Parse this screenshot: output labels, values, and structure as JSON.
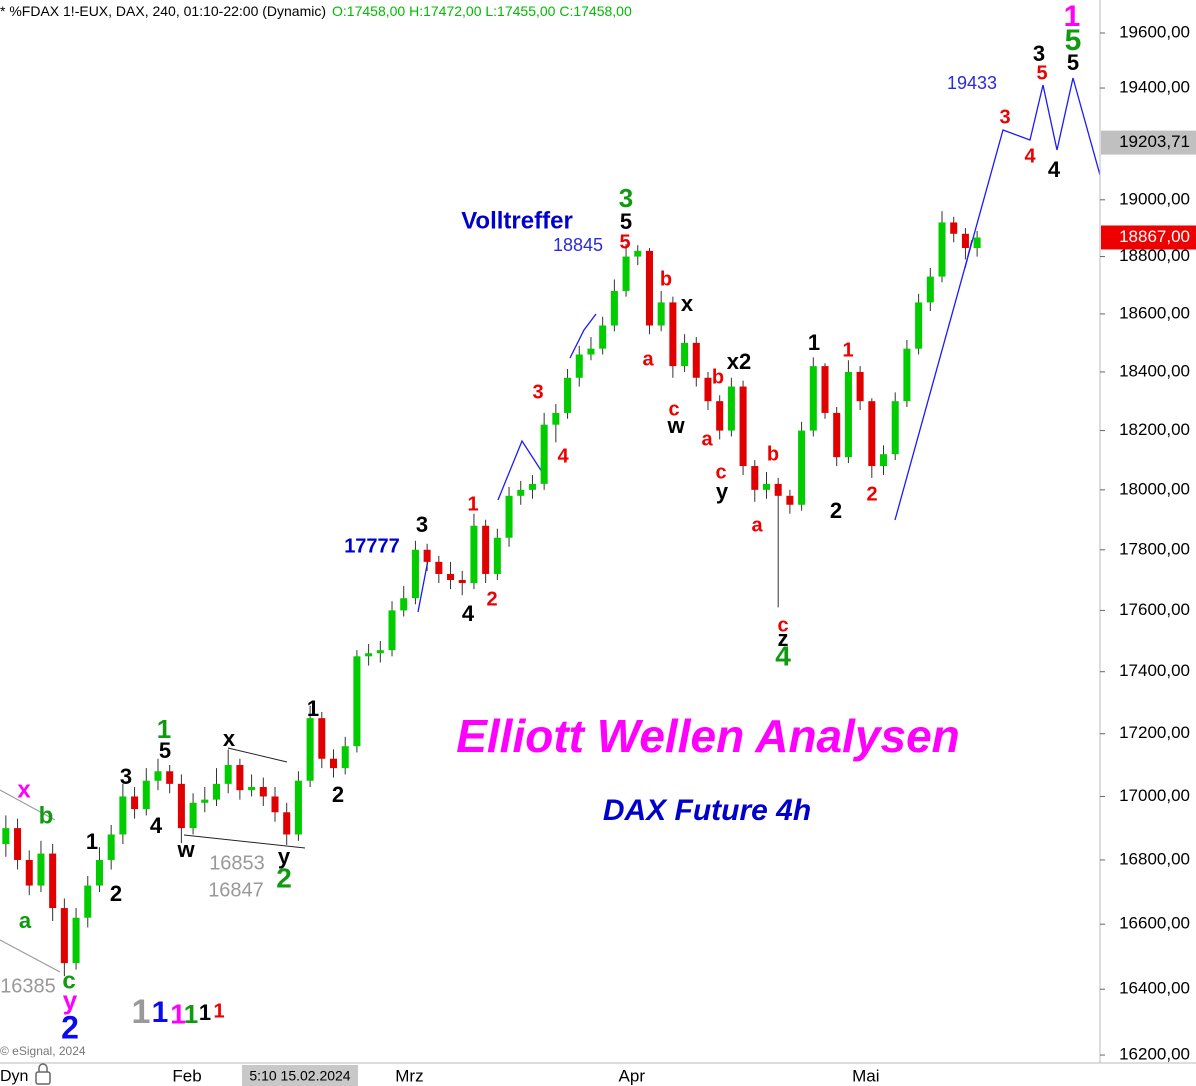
{
  "chart_data": {
    "type": "candlestick",
    "title": "* %FDAX 1!-EUX, DAX, 240, 01:10-22:00 (Dynamic)",
    "ohlc_readout": "O:17458,00 H:17472,00 L:17455,00 C:17458,00",
    "log_scale": true,
    "grid": false,
    "color_up": "#00cc00",
    "color_down": "#e00000",
    "categories": [
      null,
      null,
      null,
      null,
      null,
      null,
      null,
      null,
      null,
      null,
      null,
      null,
      null,
      null,
      null,
      null,
      "Feb",
      null,
      null,
      null,
      null,
      null,
      null,
      null,
      null,
      null,
      null,
      null,
      null,
      null,
      null,
      null,
      null,
      null,
      null,
      "Mrz",
      null,
      null,
      null,
      null,
      null,
      null,
      null,
      null,
      null,
      null,
      null,
      null,
      null,
      null,
      null,
      null,
      null,
      null,
      "Apr",
      null,
      null,
      null,
      null,
      null,
      null,
      null,
      null,
      null,
      null,
      null,
      null,
      null,
      null,
      null,
      null,
      null,
      null,
      null,
      "Mai",
      null,
      null,
      null,
      null,
      null,
      null,
      null,
      null,
      null,
      null,
      null,
      null,
      null,
      null,
      null,
      null,
      null,
      null,
      null
    ],
    "open": [
      16850,
      16900,
      16800,
      16720,
      16820,
      16650,
      16480,
      16620,
      16720,
      16800,
      16880,
      17000,
      16960,
      17050,
      17080,
      17040,
      16900,
      16980,
      16990,
      17040,
      17100,
      17020,
      17030,
      17000,
      16950,
      16880,
      17050,
      17250,
      17120,
      17090,
      17160,
      17450,
      17460,
      17470,
      17600,
      17640,
      17800,
      17760,
      17720,
      17700,
      17690,
      17880,
      17720,
      17840,
      17980,
      18000,
      18020,
      18220,
      18260,
      18380,
      18460,
      18480,
      18560,
      18680,
      18800,
      18820,
      18560,
      18640,
      18420,
      18500,
      18380,
      18300,
      18200,
      18350,
      18080,
      18000,
      18020,
      17980,
      17950,
      18200,
      18420,
      18260,
      18110,
      18400,
      18300,
      18080,
      18120,
      18300,
      18480,
      18640,
      18730,
      18920,
      18880,
      18830,
      null,
      null,
      null,
      null,
      null,
      null,
      null,
      null,
      null,
      null
    ],
    "high": [
      16940,
      16930,
      16830,
      16860,
      16850,
      16680,
      16650,
      16750,
      16840,
      16910,
      17040,
      17030,
      17090,
      17120,
      17100,
      17070,
      17010,
      17030,
      17090,
      17150,
      17120,
      17070,
      17060,
      17030,
      16980,
      17080,
      17290,
      17270,
      17150,
      17190,
      17470,
      17490,
      17500,
      17630,
      17680,
      17830,
      17820,
      17780,
      17760,
      17730,
      17920,
      17900,
      17870,
      18010,
      18030,
      18050,
      18260,
      18290,
      18410,
      18490,
      18520,
      18590,
      18720,
      18845,
      18840,
      18830,
      18680,
      18660,
      18530,
      18520,
      18400,
      18320,
      18380,
      18370,
      18100,
      18060,
      18040,
      18000,
      18230,
      18450,
      18430,
      18280,
      18440,
      18420,
      18310,
      18150,
      18330,
      18510,
      18670,
      18760,
      18960,
      18940,
      18900,
      18890,
      null,
      null,
      null,
      null,
      null,
      null,
      null,
      null,
      null,
      null
    ],
    "low": [
      16810,
      16770,
      16690,
      16700,
      16610,
      16440,
      16460,
      16590,
      16700,
      16770,
      16850,
      16930,
      16940,
      17020,
      17010,
      16853,
      16880,
      16950,
      16970,
      17010,
      16990,
      17000,
      16970,
      16920,
      16847,
      16860,
      17030,
      17090,
      17060,
      17070,
      17140,
      17420,
      17430,
      17450,
      17580,
      17620,
      17730,
      17690,
      17670,
      17650,
      17670,
      17690,
      17700,
      17810,
      17950,
      17970,
      18000,
      18160,
      18240,
      18350,
      18440,
      18460,
      18540,
      18660,
      18770,
      18530,
      18540,
      18380,
      18400,
      18350,
      18270,
      18170,
      18180,
      18050,
      17960,
      17970,
      17610,
      17920,
      17930,
      18180,
      18240,
      18080,
      18090,
      18270,
      18040,
      18050,
      18100,
      18280,
      18460,
      18610,
      18710,
      18850,
      18790,
      18800,
      null,
      null,
      null,
      null,
      null,
      null,
      null,
      null,
      null,
      null
    ],
    "close": [
      16900,
      16800,
      16720,
      16820,
      16650,
      16480,
      16620,
      16720,
      16800,
      16880,
      17000,
      16960,
      17050,
      17080,
      17040,
      16900,
      16980,
      16990,
      17040,
      17100,
      17020,
      17030,
      17000,
      16950,
      16880,
      17050,
      17250,
      17120,
      17090,
      17160,
      17450,
      17460,
      17470,
      17600,
      17640,
      17800,
      17760,
      17720,
      17700,
      17690,
      17880,
      17720,
      17840,
      17980,
      18000,
      18020,
      18220,
      18260,
      18380,
      18460,
      18480,
      18560,
      18680,
      18800,
      18820,
      18560,
      18640,
      18420,
      18500,
      18380,
      18300,
      18200,
      18350,
      18080,
      18000,
      18020,
      17980,
      17950,
      18200,
      18420,
      18260,
      18110,
      18400,
      18300,
      18080,
      18120,
      18300,
      18480,
      18640,
      18730,
      18920,
      18880,
      18830,
      18867,
      null,
      null,
      null,
      null,
      null,
      null,
      null,
      null,
      null,
      null
    ],
    "ylim": [
      16176,
      19721
    ],
    "yticks": [
      {
        "value": 16200,
        "label": "16200,00"
      },
      {
        "value": 16400,
        "label": "16400,00"
      },
      {
        "value": 16600,
        "label": "16600,00"
      },
      {
        "value": 16800,
        "label": "16800,00"
      },
      {
        "value": 17000,
        "label": "17000,00"
      },
      {
        "value": 17200,
        "label": "17200,00"
      },
      {
        "value": 17400,
        "label": "17400,00"
      },
      {
        "value": 17600,
        "label": "17600,00"
      },
      {
        "value": 17800,
        "label": "17800,00"
      },
      {
        "value": 18000,
        "label": "18000,00"
      },
      {
        "value": 18200,
        "label": "18200,00"
      },
      {
        "value": 18400,
        "label": "18400,00"
      },
      {
        "value": 18600,
        "label": "18600,00"
      },
      {
        "value": 18800,
        "label": "18800,00"
      },
      {
        "value": 19000,
        "label": "19000,00"
      },
      {
        "value": 19400,
        "label": "19400,00"
      },
      {
        "value": 19600,
        "label": "19600,00"
      }
    ],
    "price_markers": [
      {
        "value": 19203.71,
        "label": "19203,71",
        "color": "#c0c0c0"
      },
      {
        "value": 18867,
        "label": "18867,00",
        "color": "#ee0000"
      }
    ],
    "annotations": [
      "1",
      "5",
      "3",
      "5",
      "5",
      "19433",
      "3",
      "4",
      "4",
      "Volltreffer",
      "18845",
      "3",
      "5",
      "5",
      "b",
      "x",
      "a",
      "c",
      "w",
      "b",
      "x2",
      "a",
      "c",
      "y",
      "b",
      "a",
      "c",
      "z",
      "4",
      "1",
      "2",
      "1",
      "2",
      "3",
      "4",
      "3",
      "1",
      "17777",
      "4",
      "2",
      "1",
      "2",
      "Elliott Wellen Analysen",
      "DAX Future 4h",
      "x",
      "1",
      "5",
      "3",
      "4",
      "w",
      "16853",
      "16847",
      "y",
      "2",
      "1",
      "2",
      "x",
      "b",
      "a",
      "c",
      "16385",
      "y",
      "2",
      "1",
      "1",
      "1",
      "1",
      "1",
      "1"
    ],
    "copyright": "© eSignal, 2024",
    "interval_label": "Dyn",
    "crosshair_label": "5:10 15.02.2024"
  }
}
